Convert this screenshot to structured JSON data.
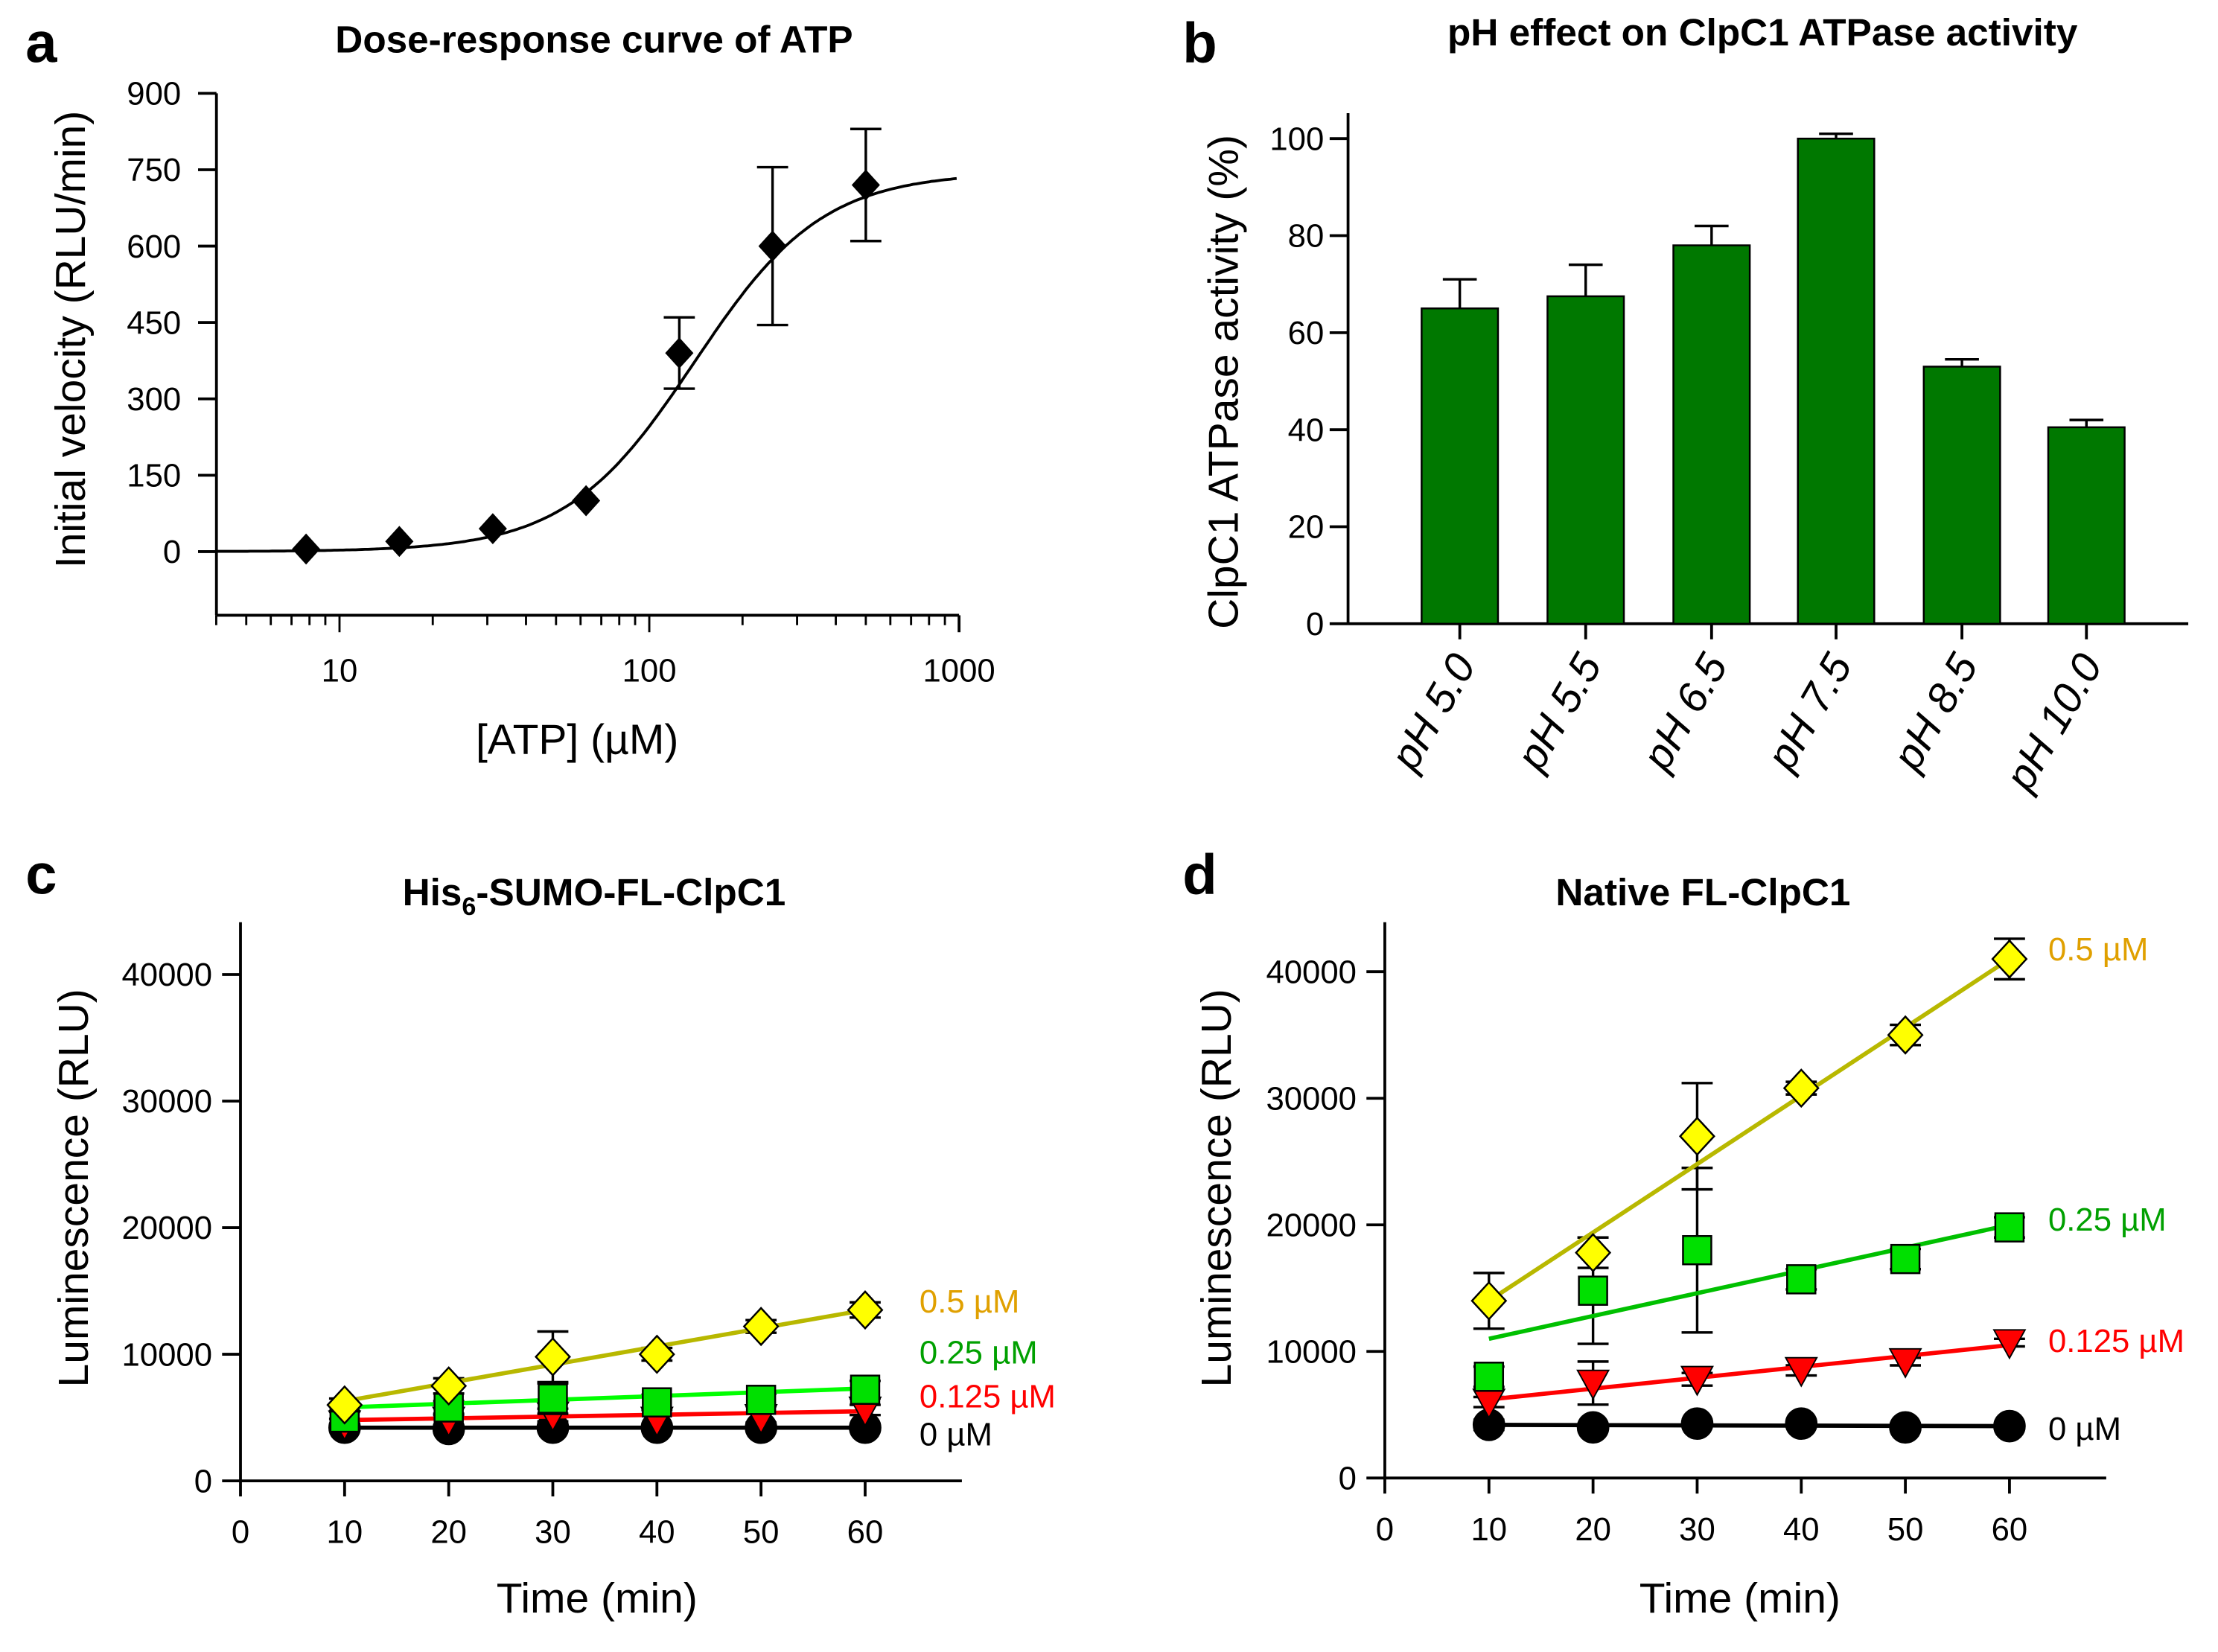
{
  "panel_labels": [
    "a",
    "b",
    "c",
    "d"
  ],
  "chart_data": [
    {
      "type": "scatter",
      "panel": "a",
      "title": "Dose-response curve of ATP",
      "xlabel": "[ATP] (µM)",
      "ylabel": "Initial velocity (RLU/min)",
      "xscale": "log",
      "xlim": [
        4,
        1000
      ],
      "ylim": [
        -125,
        900
      ],
      "xticks": [
        "10",
        "100",
        "1000"
      ],
      "yticks": [
        "0",
        "150",
        "300",
        "450",
        "600",
        "750",
        "900"
      ],
      "x": [
        7.8,
        15.6,
        31.25,
        62.5,
        125,
        250,
        500
      ],
      "y": [
        5,
        20,
        45,
        100,
        390,
        600,
        720
      ],
      "yerr": [
        0,
        0,
        0,
        0,
        70,
        155,
        110
      ],
      "marker": "diamond",
      "fit": "sigmoidal curve"
    },
    {
      "type": "bar",
      "panel": "b",
      "title": "pH effect on ClpC1 ATPase activity",
      "xlabel": "",
      "ylabel": "ClpC1 ATPase activity (%)",
      "categories": [
        "pH 5.0",
        "pH 5.5",
        "pH 6.5",
        "pH 7.5",
        "pH 8.5",
        "pH 10.0"
      ],
      "values": [
        65,
        67.5,
        78,
        100,
        53,
        40.5
      ],
      "yerr": [
        6,
        6.5,
        4,
        1,
        1.5,
        1.5
      ],
      "ylim": [
        0,
        105
      ],
      "yticks": [
        "0",
        "20",
        "40",
        "60",
        "80",
        "100"
      ],
      "color": "#007800"
    },
    {
      "type": "scatter",
      "panel": "c",
      "title": "His",
      "title_sub": "6",
      "title_rest": "-SUMO-FL-ClpC1",
      "xlabel": "Time (min)",
      "ylabel": "Luminescence (RLU)",
      "xlim": [
        0,
        69
      ],
      "ylim": [
        0,
        44000
      ],
      "xticks": [
        "0",
        "10",
        "20",
        "30",
        "40",
        "50",
        "60"
      ],
      "yticks": [
        "0",
        "10000",
        "20000",
        "30000",
        "40000"
      ],
      "x": [
        10,
        20,
        30,
        40,
        50,
        60
      ],
      "series": [
        {
          "name": "0.5 µM",
          "values": [
            6000,
            7500,
            9800,
            10000,
            12200,
            13500
          ],
          "yerr": [
            500,
            600,
            2000,
            500,
            500,
            600
          ],
          "fit": [
            6300,
            13500
          ],
          "marker": "diamond",
          "fill": "#ffff00",
          "line": "#b8b800",
          "label_color": "#e0a000"
        },
        {
          "name": "0.25 µM",
          "values": [
            5000,
            5800,
            6500,
            6200,
            6400,
            7200
          ],
          "yerr": [
            500,
            500,
            1200,
            600,
            500,
            700
          ],
          "fit": [
            5800,
            7300
          ],
          "marker": "square",
          "fill": "#00e000",
          "line": "#00ff00",
          "label_color": "#00a000"
        },
        {
          "name": "0.125 µM",
          "values": [
            4500,
            4800,
            5200,
            4800,
            5000,
            5600
          ],
          "yerr": [
            400,
            400,
            500,
            400,
            400,
            400
          ],
          "fit": [
            4800,
            5500
          ],
          "marker": "triangle",
          "fill": "#ff0000",
          "line": "#ff0000",
          "label_color": "#ff0000"
        },
        {
          "name": "0 µM",
          "values": [
            4200,
            4100,
            4200,
            4200,
            4200,
            4200
          ],
          "yerr": [
            300,
            300,
            300,
            300,
            300,
            300
          ],
          "fit": [
            4200,
            4200
          ],
          "marker": "circle",
          "fill": "#000000",
          "line": "#000000",
          "label_color": "#000000"
        }
      ]
    },
    {
      "type": "scatter",
      "panel": "d",
      "title": "Native FL-ClpC1",
      "xlabel": "Time (min)",
      "ylabel": "Luminescence (RLU)",
      "xlim": [
        0,
        69
      ],
      "ylim": [
        0,
        44000
      ],
      "xticks": [
        "0",
        "10",
        "20",
        "30",
        "40",
        "50",
        "60"
      ],
      "yticks": [
        "0",
        "10000",
        "20000",
        "30000",
        "40000"
      ],
      "x": [
        10,
        20,
        30,
        40,
        50,
        60
      ],
      "series": [
        {
          "name": "0.5 µM",
          "values": [
            14000,
            17800,
            27000,
            30800,
            35000,
            41000
          ],
          "yerr": [
            2200,
            1200,
            4200,
            500,
            800,
            1600
          ],
          "fit": [
            14000,
            41000
          ],
          "marker": "diamond",
          "fill": "#ffff00",
          "line": "#b8b800",
          "label_color": "#e0a000"
        },
        {
          "name": "0.25 µM",
          "values": [
            8000,
            14800,
            18000,
            15700,
            17300,
            19800
          ],
          "yerr": [
            800,
            4200,
            6500,
            800,
            800,
            800
          ],
          "fit": [
            11000,
            20000
          ],
          "marker": "square",
          "fill": "#00e000",
          "line": "#00c000",
          "label_color": "#00a000"
        },
        {
          "name": "0.125 µM",
          "values": [
            6000,
            7500,
            7800,
            8500,
            9200,
            10700
          ],
          "yerr": [
            400,
            1700,
            500,
            400,
            300,
            300
          ],
          "fit": [
            6200,
            10500
          ],
          "marker": "triangle",
          "fill": "#ff0000",
          "line": "#ff0000",
          "label_color": "#ff0000"
        },
        {
          "name": "0 µM",
          "values": [
            4200,
            4000,
            4300,
            4300,
            4000,
            4100
          ],
          "yerr": [
            400,
            300,
            300,
            300,
            300,
            300
          ],
          "fit": [
            4200,
            4100
          ],
          "marker": "circle",
          "fill": "#000000",
          "line": "#000000",
          "label_color": "#000000"
        }
      ]
    }
  ]
}
